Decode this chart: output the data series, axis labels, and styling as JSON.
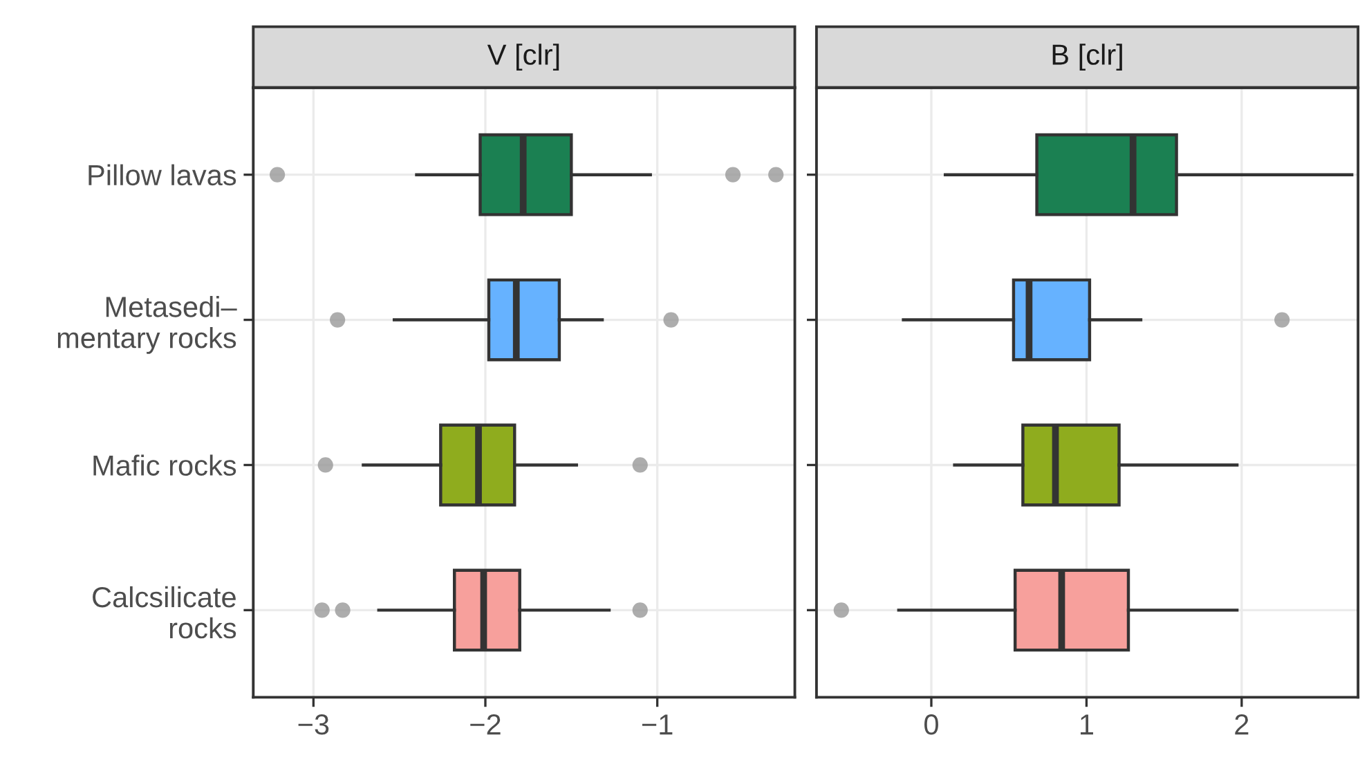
{
  "chart_data": [
    {
      "type": "box",
      "orientation": "horizontal",
      "title": "V [clr]",
      "categories": [
        "Pillow lavas",
        "Metasedi–\nmentary rocks",
        "Mafic rocks",
        "Calcsilicate\nrocks"
      ],
      "colors": [
        "#1b8052",
        "#66b2ff",
        "#8fac1e",
        "#f7a09c"
      ],
      "boxes": [
        {
          "low": -2.4,
          "q1": -2.03,
          "median": -1.78,
          "q3": -1.5,
          "high": -1.04,
          "outliers": [
            -3.21,
            -0.56,
            -0.31
          ]
        },
        {
          "low": -2.53,
          "q1": -1.98,
          "median": -1.82,
          "q3": -1.57,
          "high": -1.32,
          "outliers": [
            -2.86,
            -0.92
          ]
        },
        {
          "low": -2.71,
          "q1": -2.26,
          "median": -2.04,
          "q3": -1.83,
          "high": -1.47,
          "outliers": [
            -2.93,
            -1.1
          ]
        },
        {
          "low": -2.62,
          "q1": -2.18,
          "median": -2.01,
          "q3": -1.8,
          "high": -1.28,
          "outliers": [
            -2.95,
            -2.83,
            -1.1
          ]
        }
      ],
      "xlim": [
        -3.35,
        -0.2
      ],
      "xticks": [
        {
          "value": -3,
          "label": "−3"
        },
        {
          "value": -2,
          "label": "−2"
        },
        {
          "value": -1,
          "label": "−1"
        }
      ],
      "grid": true
    },
    {
      "type": "box",
      "orientation": "horizontal",
      "title": "B [clr]",
      "colors": [
        "#1b8052",
        "#66b2ff",
        "#8fac1e",
        "#f7a09c"
      ],
      "boxes": [
        {
          "low": 0.09,
          "q1": 0.68,
          "median": 1.3,
          "q3": 1.58,
          "high": 2.71
        },
        {
          "low": -0.18,
          "q1": 0.53,
          "median": 0.63,
          "q3": 1.02,
          "high": 1.35,
          "outliers": [
            2.26
          ]
        },
        {
          "low": 0.15,
          "q1": 0.59,
          "median": 0.8,
          "q3": 1.21,
          "high": 1.97
        },
        {
          "low": -0.21,
          "q1": 0.54,
          "median": 0.84,
          "q3": 1.27,
          "high": 1.97,
          "outliers": [
            -0.58
          ]
        }
      ],
      "xlim": [
        -0.74,
        2.75
      ],
      "xticks": [
        0,
        1,
        2
      ],
      "grid": true,
      "tick_labels": "x"
    }
  ]
}
